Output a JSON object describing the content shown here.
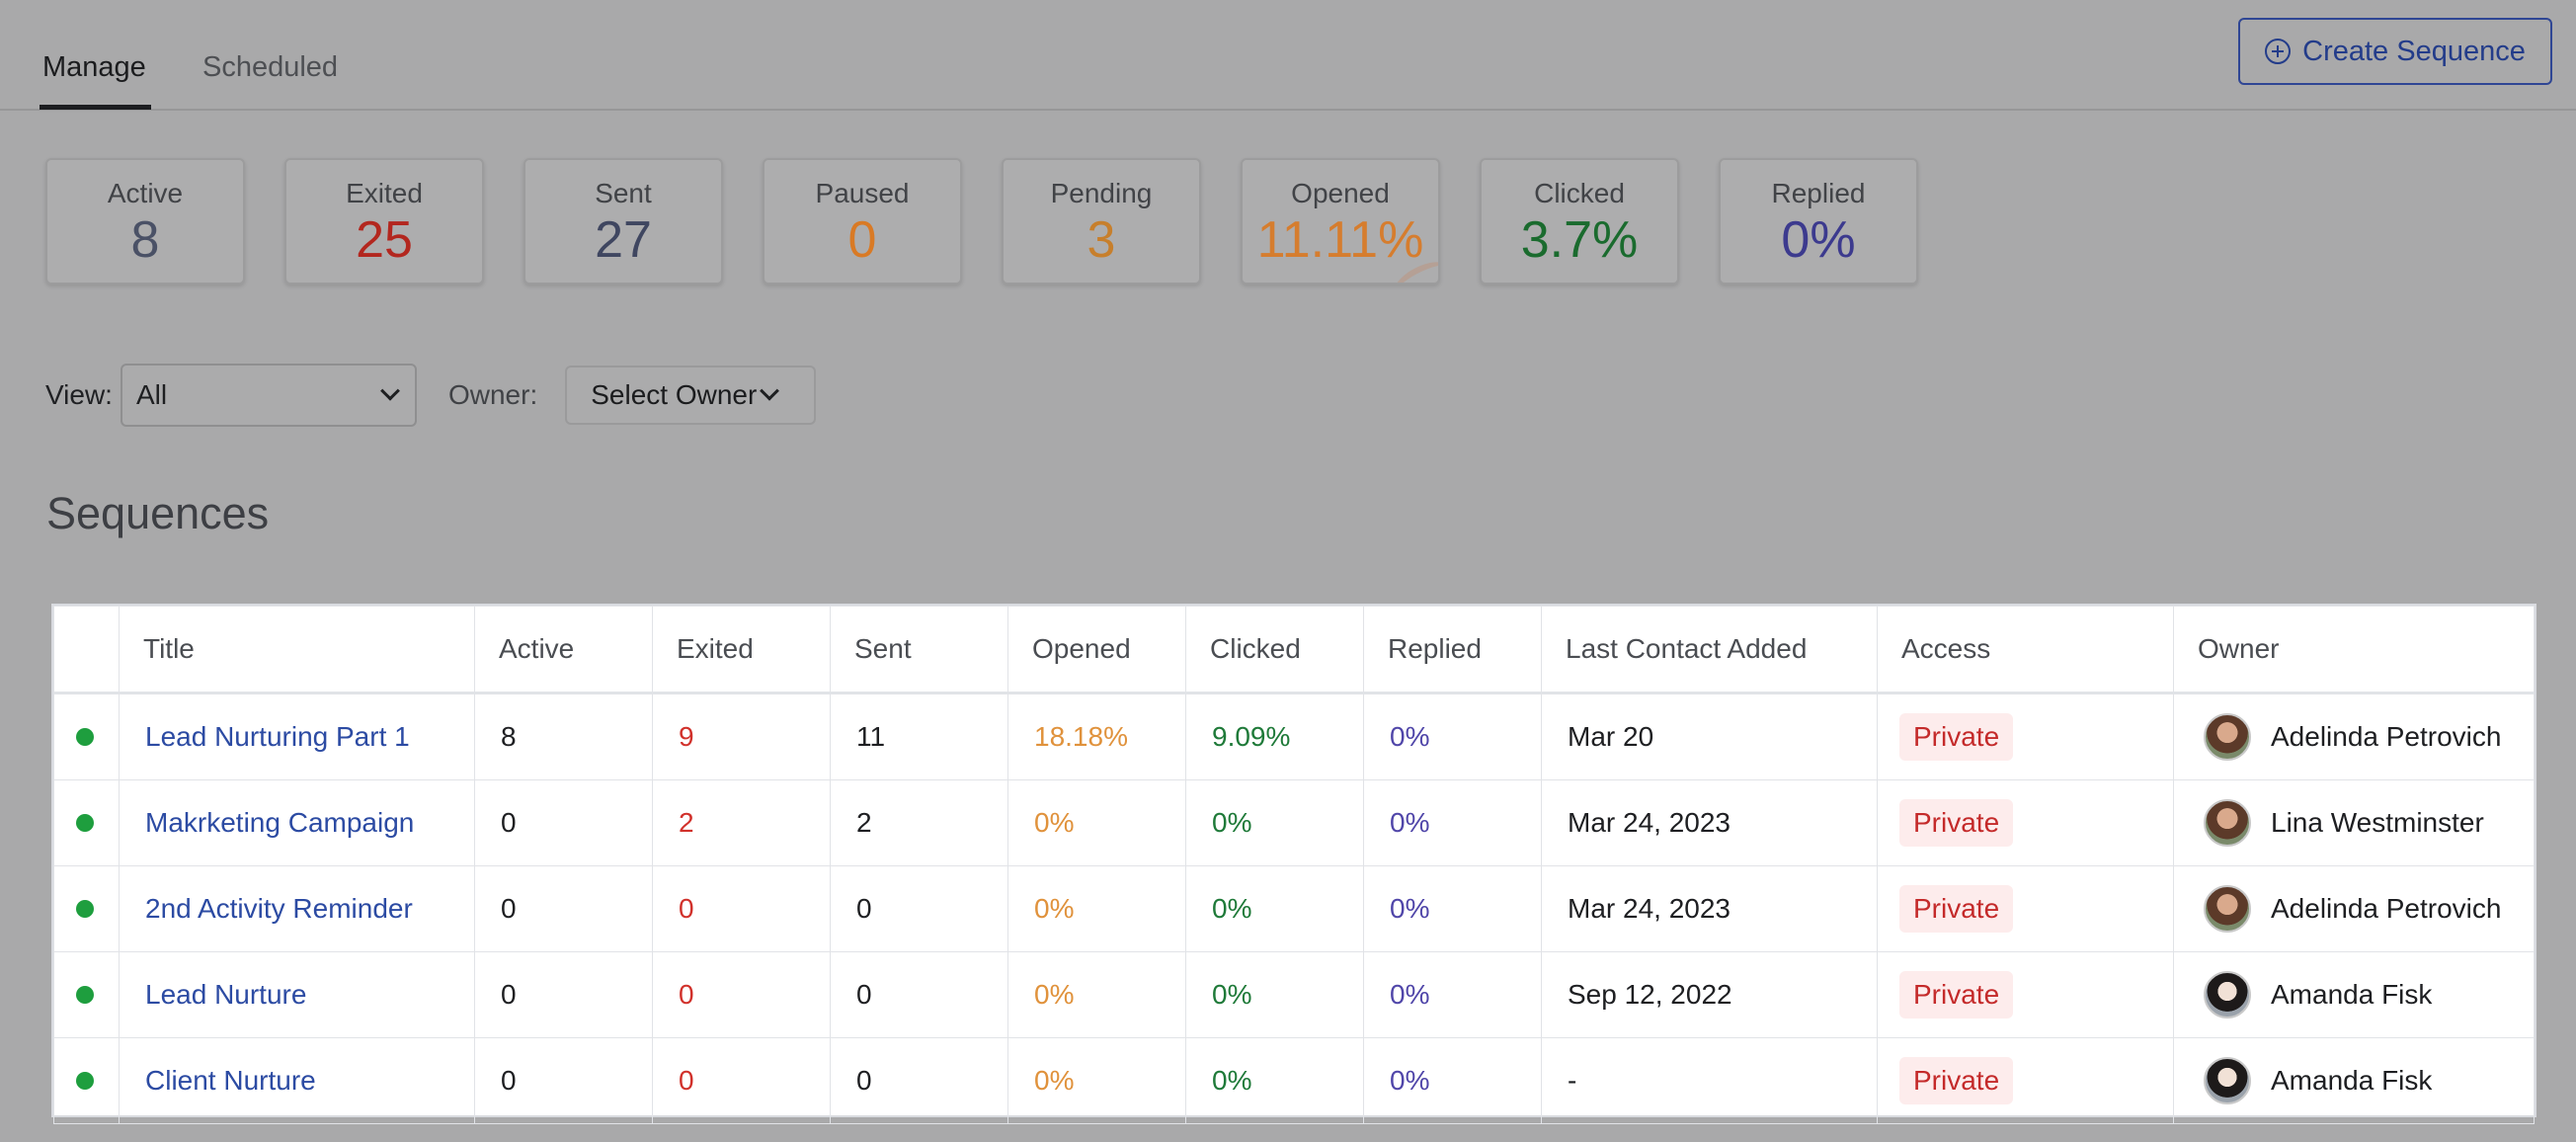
{
  "tabs": [
    {
      "label": "Manage",
      "active": true
    },
    {
      "label": "Scheduled",
      "active": false
    }
  ],
  "create_button": {
    "label": "Create Sequence",
    "icon": "plus-circle-icon"
  },
  "stats": [
    {
      "label": "Active",
      "value": "8",
      "color": "#4a5166"
    },
    {
      "label": "Exited",
      "value": "25",
      "color": "#b3271f"
    },
    {
      "label": "Sent",
      "value": "27",
      "color": "#3f4660"
    },
    {
      "label": "Paused",
      "value": "0",
      "color": "#d97a25"
    },
    {
      "label": "Pending",
      "value": "3",
      "color": "#c77f2c"
    },
    {
      "label": "Opened",
      "value": "11.11%",
      "color": "#d67d2e"
    },
    {
      "label": "Clicked",
      "value": "3.7%",
      "color": "#1a6b2e"
    },
    {
      "label": "Replied",
      "value": "0%",
      "color": "#3c3a8e"
    }
  ],
  "filters": {
    "view_label": "View:",
    "view_value": "All",
    "owner_label": "Owner:",
    "owner_value": "Select Owner"
  },
  "section_title": "Sequences",
  "table": {
    "headers": [
      "",
      "Title",
      "Active",
      "Exited",
      "Sent",
      "Opened",
      "Clicked",
      "Replied",
      "Last Contact Added",
      "Access",
      "Owner"
    ],
    "rows": [
      {
        "title": "Lead Nurturing Part 1",
        "active": "8",
        "exited": "9",
        "sent": "11",
        "opened": "18.18%",
        "clicked": "9.09%",
        "replied": "0%",
        "last_contact": "Mar 20",
        "access": "Private",
        "owner": "Adelinda Petrovich",
        "avatar": "a1"
      },
      {
        "title": "Makrketing Campaign",
        "active": "0",
        "exited": "2",
        "sent": "2",
        "opened": "0%",
        "clicked": "0%",
        "replied": "0%",
        "last_contact": "Mar 24, 2023",
        "access": "Private",
        "owner": "Lina Westminster",
        "avatar": "a1"
      },
      {
        "title": "2nd Activity Reminder",
        "active": "0",
        "exited": "0",
        "sent": "0",
        "opened": "0%",
        "clicked": "0%",
        "replied": "0%",
        "last_contact": "Mar 24, 2023",
        "access": "Private",
        "owner": "Adelinda Petrovich",
        "avatar": "a1"
      },
      {
        "title": "Lead Nurture",
        "active": "0",
        "exited": "0",
        "sent": "0",
        "opened": "0%",
        "clicked": "0%",
        "replied": "0%",
        "last_contact": "Sep 12, 2022",
        "access": "Private",
        "owner": "Amanda Fisk",
        "avatar": "a2"
      },
      {
        "title": "Client Nurture",
        "active": "0",
        "exited": "0",
        "sent": "0",
        "opened": "0%",
        "clicked": "0%",
        "replied": "0%",
        "last_contact": "-",
        "access": "Private",
        "owner": "Amanda Fisk",
        "avatar": "a2"
      }
    ]
  }
}
